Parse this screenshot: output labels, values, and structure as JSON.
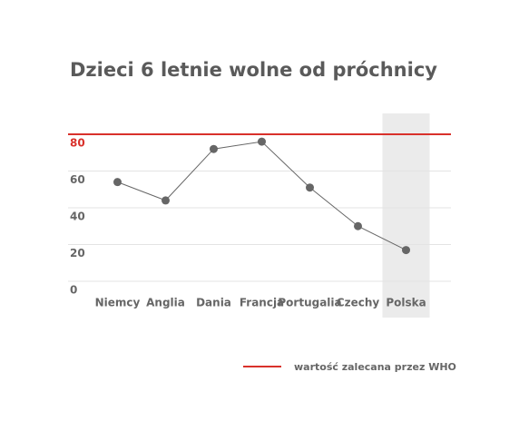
{
  "chart_data": {
    "type": "line",
    "title": "Dzieci 6 letnie wolne od próchnicy",
    "categories": [
      "Niemcy",
      "Anglia",
      "Dania",
      "Francja",
      "Portugalia",
      "Czechy",
      "Polska"
    ],
    "values": [
      54,
      44,
      72,
      76,
      51,
      30,
      17
    ],
    "color": "#666666",
    "ylim": [
      0,
      80
    ],
    "yticks": [
      0,
      20,
      40,
      60,
      80
    ],
    "grid": true,
    "highlight": "Polska",
    "reference_line": {
      "value": 80,
      "label": "wartość zalecana przez WHO",
      "color": "#d9312b"
    },
    "legend": "bottom-right"
  }
}
